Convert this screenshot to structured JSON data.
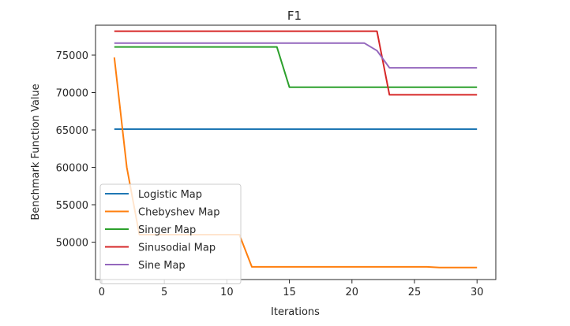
{
  "chart_data": {
    "type": "line",
    "title": "F1",
    "xlabel": "Iterations",
    "ylabel": "Benchmark Function Value",
    "xlim": [
      -0.5,
      31.5
    ],
    "ylim": [
      45000,
      79000
    ],
    "xticks": [
      0,
      5,
      10,
      15,
      20,
      25,
      30
    ],
    "yticks": [
      50000,
      55000,
      60000,
      65000,
      70000,
      75000
    ],
    "grid": false,
    "legend_position": "lower-left",
    "series": [
      {
        "name": "Logistic Map",
        "color": "#1f77b4",
        "x": [
          1,
          30
        ],
        "y": [
          65100,
          65100
        ]
      },
      {
        "name": "Chebyshev Map",
        "color": "#ff7f0e",
        "x": [
          1,
          2,
          3,
          4,
          5,
          6,
          7,
          8,
          9,
          10,
          11,
          12,
          13,
          14,
          15,
          16,
          17,
          18,
          19,
          20,
          21,
          22,
          23,
          24,
          25,
          26,
          27,
          28,
          29,
          30
        ],
        "y": [
          74700,
          60000,
          51000,
          51000,
          51000,
          51000,
          51000,
          51000,
          51000,
          51000,
          51000,
          46700,
          46700,
          46700,
          46700,
          46700,
          46700,
          46700,
          46700,
          46700,
          46700,
          46700,
          46700,
          46700,
          46700,
          46700,
          46600,
          46600,
          46600,
          46600
        ]
      },
      {
        "name": "Singer Map",
        "color": "#2ca02c",
        "x": [
          1,
          14,
          15,
          30
        ],
        "y": [
          76100,
          76100,
          70700,
          70700
        ]
      },
      {
        "name": "Sinusodial Map",
        "color": "#d62728",
        "x": [
          1,
          22,
          23,
          30
        ],
        "y": [
          78200,
          78200,
          69700,
          69700
        ]
      },
      {
        "name": "Sine Map",
        "color": "#9467bd",
        "x": [
          1,
          21,
          22,
          23,
          30
        ],
        "y": [
          76600,
          76600,
          75600,
          73300,
          73300
        ]
      }
    ]
  }
}
